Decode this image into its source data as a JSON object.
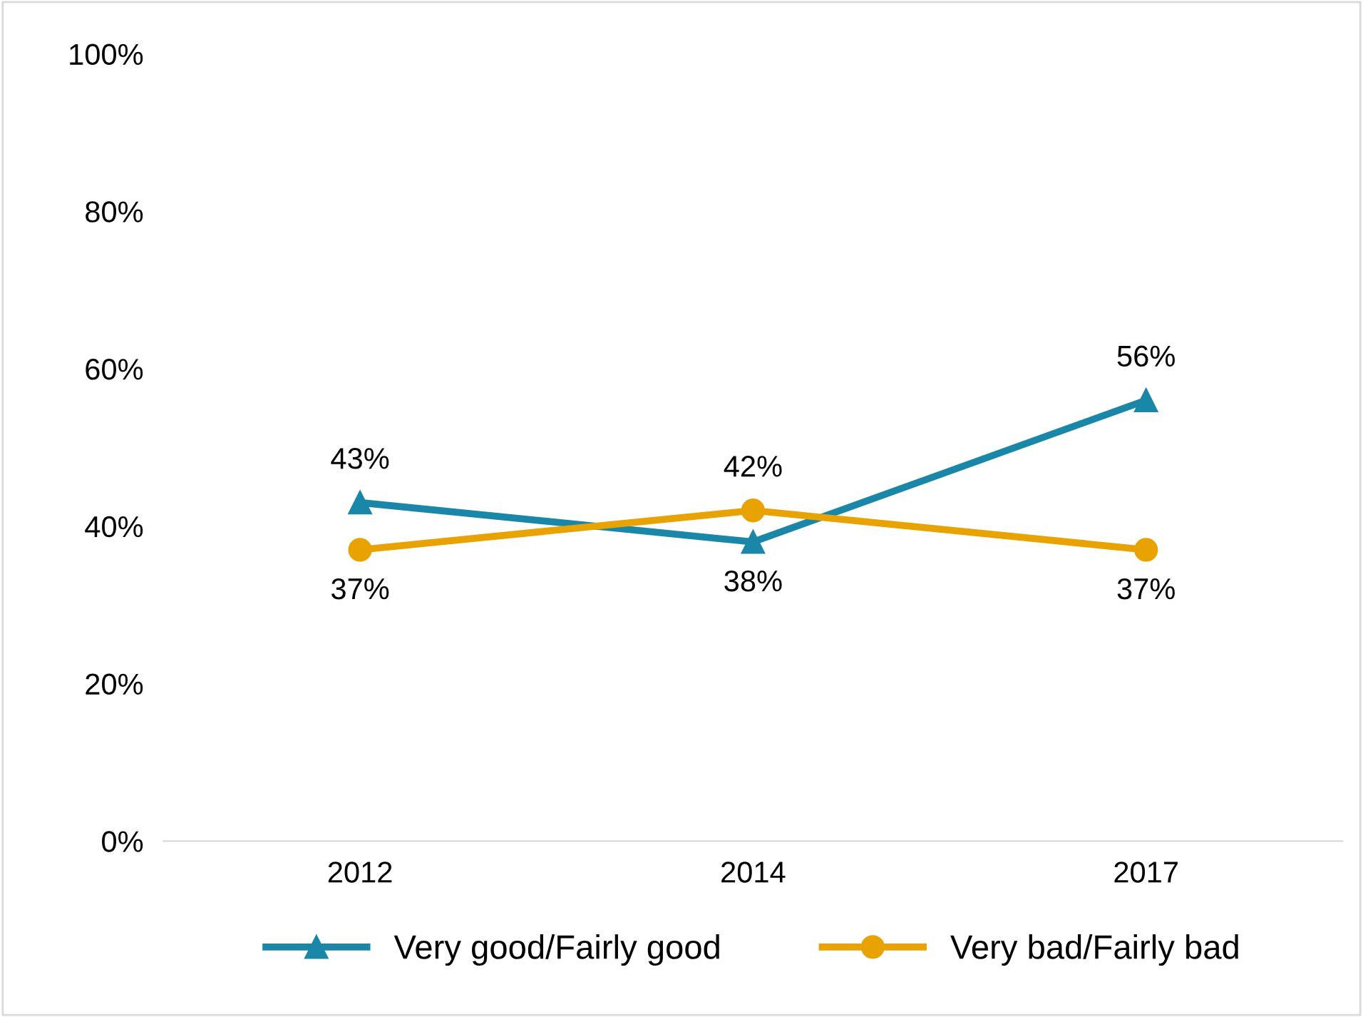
{
  "chart_data": {
    "type": "line",
    "categories": [
      "2012",
      "2014",
      "2017"
    ],
    "series": [
      {
        "name": "Very good/Fairly good",
        "color": "#1a87a8",
        "marker": "triangle",
        "values": [
          43,
          38,
          56
        ],
        "value_labels": [
          "43%",
          "38%",
          "56%"
        ]
      },
      {
        "name": "Very bad/Fairly bad",
        "color": "#e8a202",
        "marker": "circle",
        "values": [
          37,
          42,
          37
        ],
        "value_labels": [
          "37%",
          "42%",
          "37%"
        ]
      }
    ],
    "ylim": [
      0,
      100
    ],
    "yticks": [
      {
        "value": 0,
        "label": "0%"
      },
      {
        "value": 20,
        "label": "20%"
      },
      {
        "value": 40,
        "label": "40%"
      },
      {
        "value": 60,
        "label": "60%"
      },
      {
        "value": 80,
        "label": "80%"
      },
      {
        "value": 100,
        "label": "100%"
      }
    ],
    "grid": false,
    "legend": "bottom",
    "line_style": "solid"
  }
}
